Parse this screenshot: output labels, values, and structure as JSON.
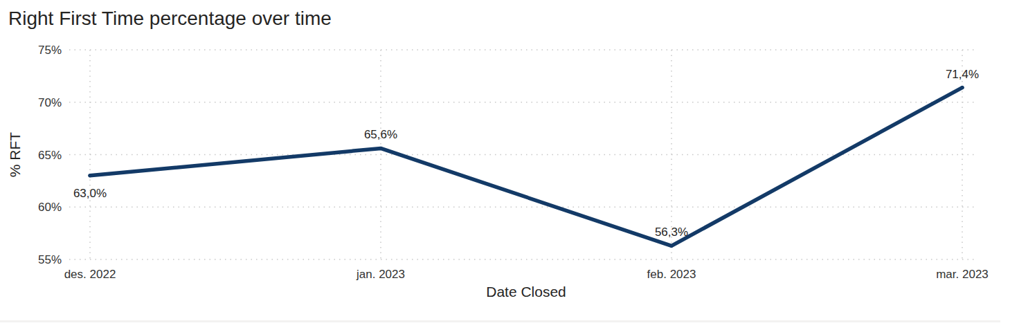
{
  "chart_data": {
    "type": "line",
    "title": "Right First Time percentage over time",
    "x_label": "Date Closed",
    "y_label": "% RFT",
    "categories": [
      "des. 2022",
      "jan. 2023",
      "feb. 2023",
      "mar. 2023"
    ],
    "values": [
      63.0,
      65.6,
      56.3,
      71.4
    ],
    "value_labels": [
      "63,0%",
      "65,6%",
      "56,3%",
      "71,4%"
    ],
    "color": "#133a67",
    "ylim": [
      55,
      75
    ],
    "yticks": [
      {
        "value": 55,
        "label": "55%"
      },
      {
        "value": 60,
        "label": "60%"
      },
      {
        "value": 65,
        "label": "65%"
      },
      {
        "value": 70,
        "label": "70%"
      },
      {
        "value": 75,
        "label": "75%"
      }
    ],
    "grid": true,
    "data_labels": true
  }
}
